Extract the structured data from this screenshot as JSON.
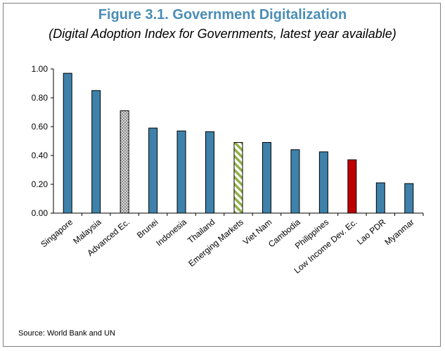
{
  "figure": {
    "title": "Figure 3.1. Government Digitalization",
    "subtitle": "(Digital Adoption Index for Governments, latest year available)",
    "source": "Source: World Bank and UN"
  },
  "chart_data": {
    "type": "bar",
    "title": "Figure 3.1. Government Digitalization",
    "subtitle": "(Digital Adoption Index for Governments, latest year available)",
    "xlabel": "",
    "ylabel": "",
    "ylim": [
      0,
      1
    ],
    "yticks": [
      0,
      0.2,
      0.4,
      0.6,
      0.8,
      1.0
    ],
    "ytick_labels": [
      "0.00",
      "0.20",
      "0.40",
      "0.60",
      "0.80",
      "1.00"
    ],
    "grid": false,
    "legend": "none",
    "categories": [
      "Singapore",
      "Malaysia",
      "Advanced Ec.",
      "Brunei",
      "Indonesia",
      "Thailand",
      "Emerging Markets",
      "Viet Nam",
      "Cambodia",
      "Philippines",
      "Low Income Dev. Ec.",
      "Lao PDR",
      "Myanmar"
    ],
    "values": [
      0.97,
      0.85,
      0.71,
      0.59,
      0.57,
      0.565,
      0.49,
      0.49,
      0.44,
      0.425,
      0.37,
      0.21,
      0.205
    ],
    "bar_styles": [
      "solid",
      "solid",
      "crosshatch",
      "solid",
      "solid",
      "solid",
      "green-stripe",
      "solid",
      "solid",
      "solid",
      "red",
      "solid",
      "solid"
    ],
    "colors": {
      "bar": "#3e82ab",
      "advanced_hatch": "#7f7f7f",
      "emerging_stripe": "#8fb045",
      "low_income": "#c00000",
      "title": "#4a8db5"
    }
  }
}
